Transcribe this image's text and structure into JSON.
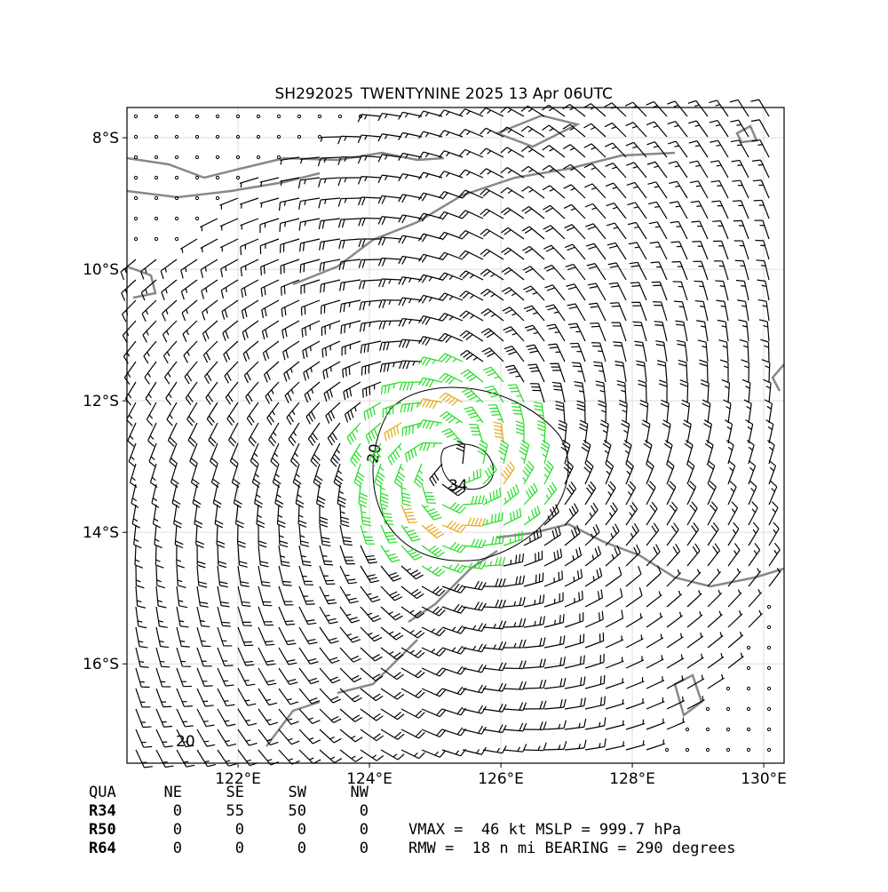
{
  "header": {
    "storm_id": "SH292025",
    "title": "TWENTYNINE 2025 13 Apr 06UTC"
  },
  "map": {
    "lon_range": [
      120.31,
      130.31
    ],
    "lat_range": [
      -17.51,
      -7.54
    ],
    "lat_ticks": [
      {
        "value": -8,
        "label": "8°S"
      },
      {
        "value": -10,
        "label": "10°S"
      },
      {
        "value": -12,
        "label": "12°S"
      },
      {
        "value": -14,
        "label": "14°S"
      },
      {
        "value": -16,
        "label": "16°S"
      }
    ],
    "lon_ticks": [
      {
        "value": 122,
        "label": "122°E"
      },
      {
        "value": 124,
        "label": "124°E"
      },
      {
        "value": 126,
        "label": "126°E"
      },
      {
        "value": 128,
        "label": "128°E"
      },
      {
        "value": 130,
        "label": "130°E"
      }
    ],
    "contour_labels": [
      "20",
      "34",
      "20"
    ]
  },
  "table": {
    "header": [
      "QUA",
      "NE",
      "SE",
      "SW",
      "NW"
    ],
    "rows": [
      [
        "R34",
        "0",
        "55",
        "50",
        "0"
      ],
      [
        "R50",
        "0",
        "0",
        "0",
        "0"
      ],
      [
        "R64",
        "0",
        "0",
        "0",
        "0"
      ]
    ]
  },
  "stats": [
    "VMAX =  46 kt MSLP = 999.7 hPa",
    "RMW =  18 n mi BEARING = 290 degrees"
  ]
}
